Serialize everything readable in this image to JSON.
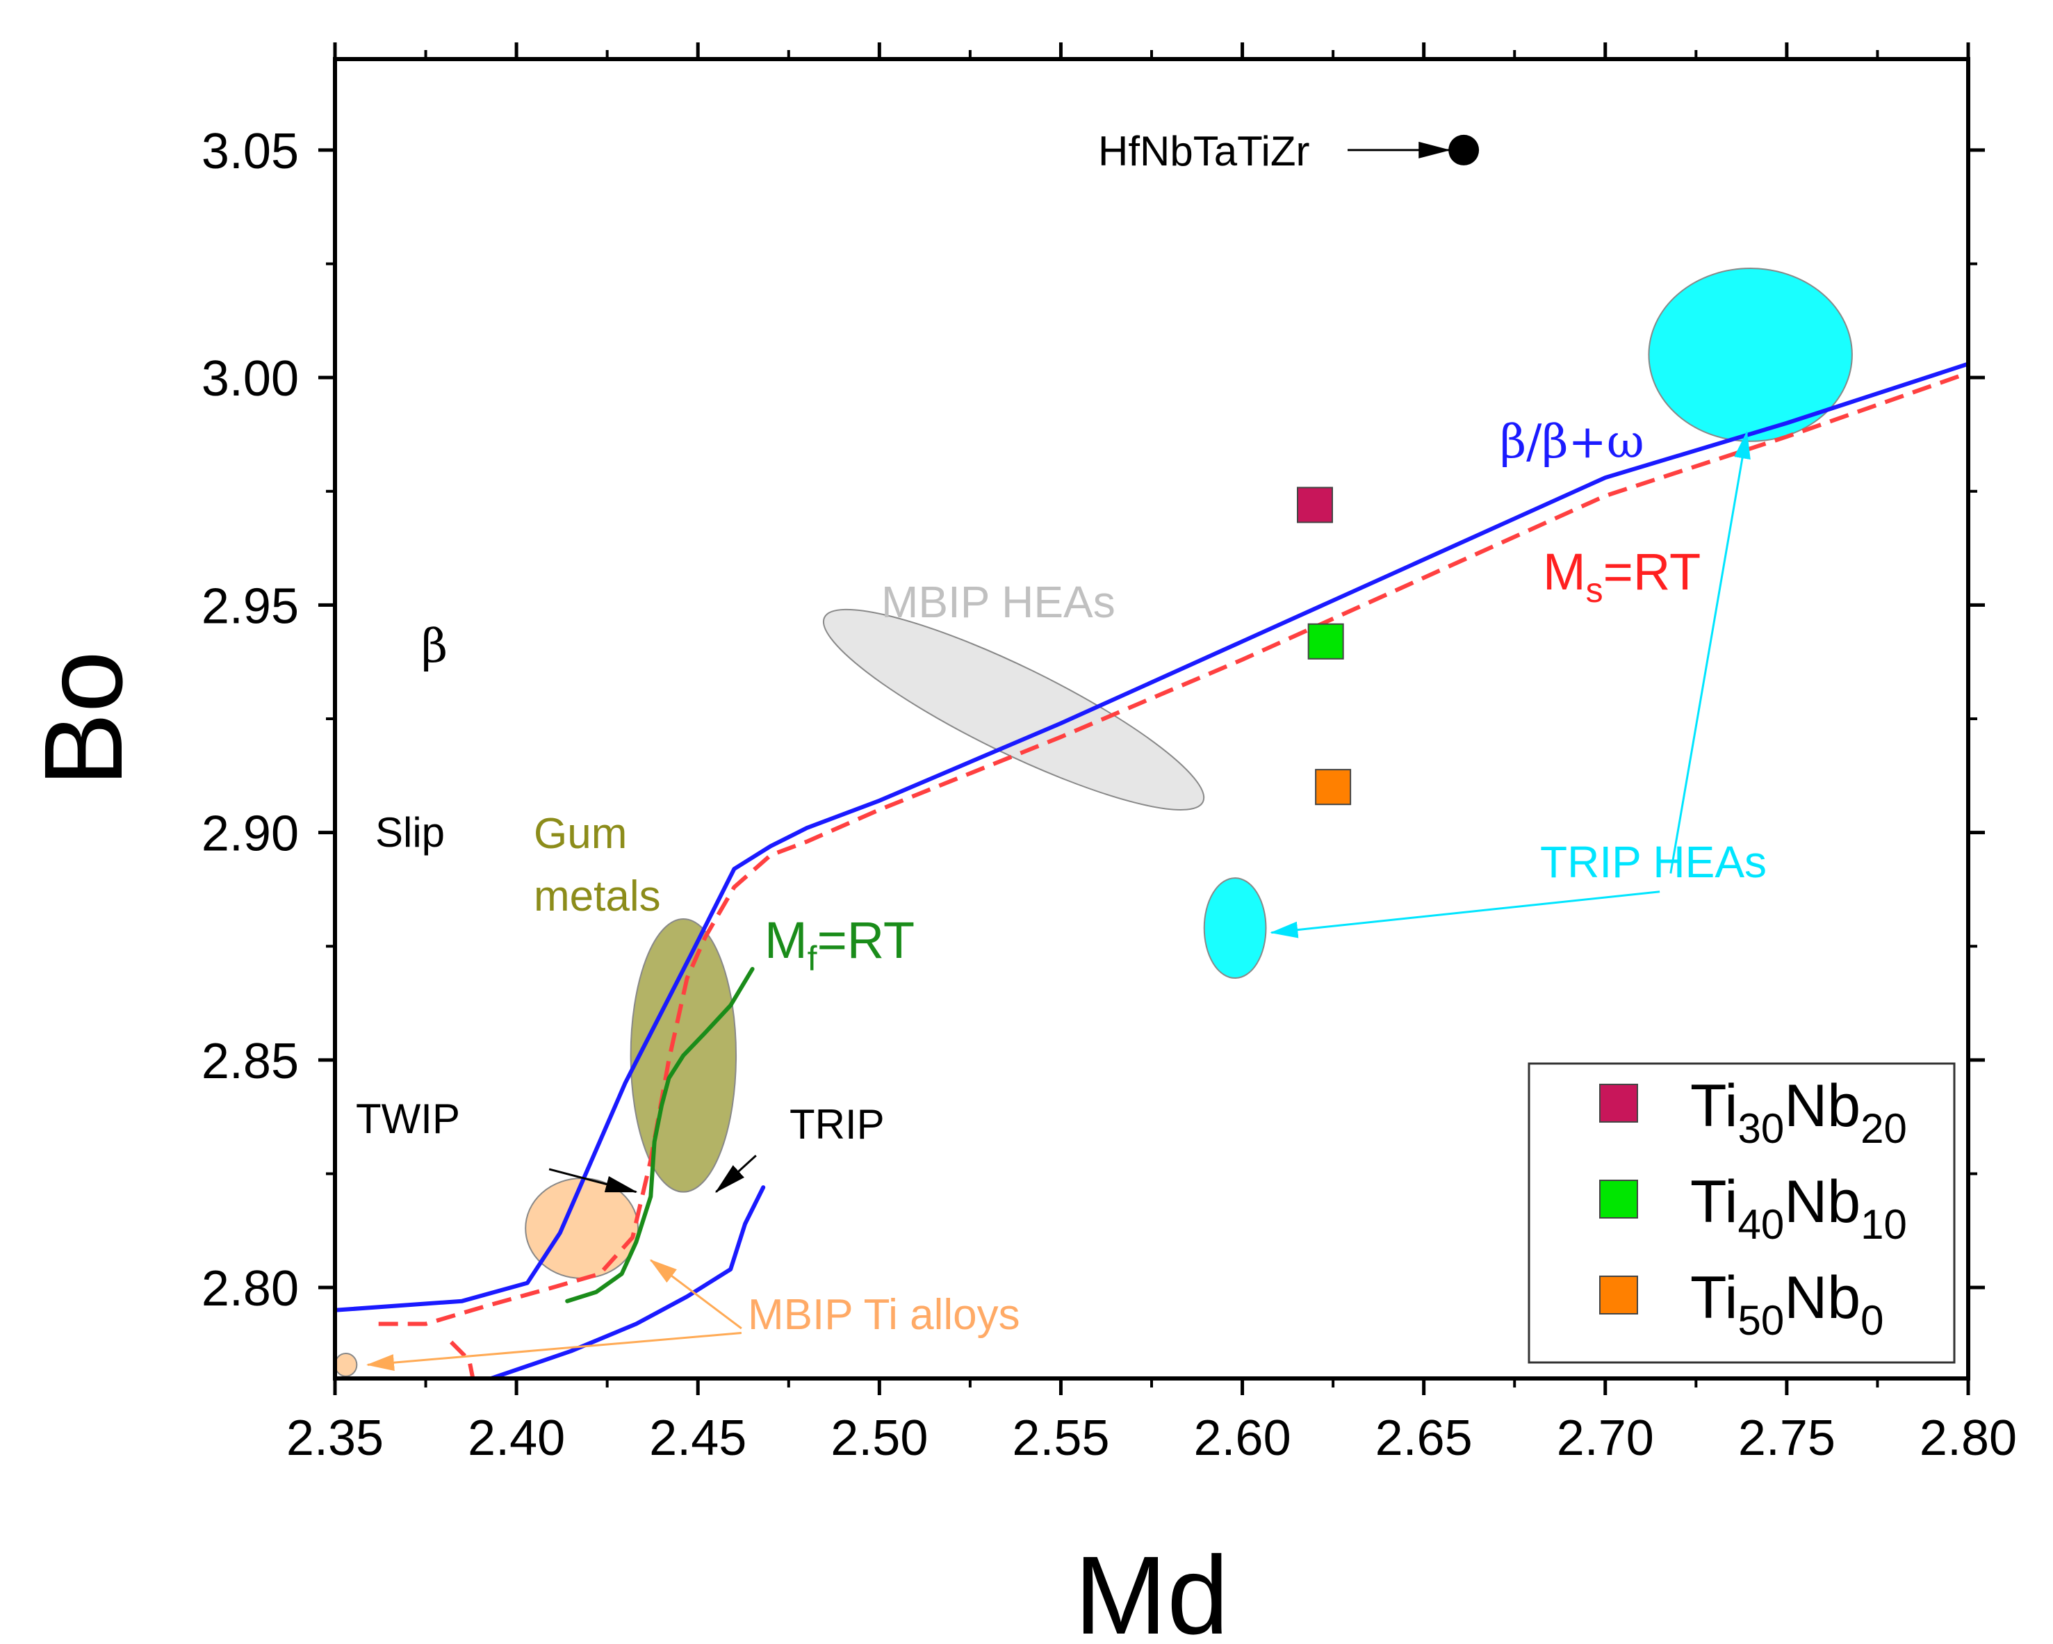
{
  "chart_data": {
    "type": "scatter",
    "title": "",
    "xlabel": "Md",
    "ylabel": "Bo",
    "xlim": [
      2.35,
      2.8
    ],
    "ylim": [
      2.78,
      3.07
    ],
    "x_ticks": [
      2.35,
      2.4,
      2.45,
      2.5,
      2.55,
      2.6,
      2.65,
      2.7,
      2.75,
      2.8
    ],
    "x_tick_labels": [
      "2.35",
      "2.40",
      "2.45",
      "2.50",
      "2.55",
      "2.60",
      "2.65",
      "2.70",
      "2.75",
      "2.80"
    ],
    "y_ticks": [
      2.8,
      2.85,
      2.9,
      2.95,
      3.0,
      3.05
    ],
    "y_tick_labels": [
      "2.80",
      "2.85",
      "2.90",
      "2.95",
      "3.00",
      "3.05"
    ],
    "colors": {
      "beta_line": "#1a1aff",
      "ms_line": "#ff4040",
      "mf_line": "#1a8c1a",
      "trip_boundary": "#1a1aff",
      "trip_heas": "#00ffff",
      "mbip_heas": "#dcdcdc",
      "gum_metals": "#999933",
      "mbip_ti": "#ffcc99"
    },
    "lines": [
      {
        "name": "β/β+ω",
        "style": "solid",
        "color": "#1a1aff",
        "x": [
          2.35,
          2.385,
          2.403,
          2.412,
          2.43,
          2.448,
          2.46,
          2.47,
          2.48,
          2.5,
          2.55,
          2.6,
          2.65,
          2.7,
          2.75,
          2.8
        ],
        "y": [
          2.795,
          2.797,
          2.801,
          2.812,
          2.845,
          2.873,
          2.892,
          2.897,
          2.901,
          2.907,
          2.924,
          2.942,
          2.96,
          2.978,
          2.99,
          3.003
        ]
      },
      {
        "name": "Ms=RT",
        "style": "dashed",
        "color": "#ff4040",
        "x": [
          2.362,
          2.375,
          2.392,
          2.41,
          2.423,
          2.432,
          2.437,
          2.442,
          2.447,
          2.452,
          2.46,
          2.47,
          2.48,
          2.5,
          2.55,
          2.6,
          2.65,
          2.7,
          2.75,
          2.8
        ],
        "y": [
          2.792,
          2.792,
          2.796,
          2.8,
          2.803,
          2.811,
          2.828,
          2.85,
          2.868,
          2.877,
          2.888,
          2.895,
          2.898,
          2.905,
          2.921,
          2.938,
          2.956,
          2.974,
          2.987,
          3.001
        ]
      },
      {
        "name": "Ms=RT (low branch)",
        "style": "dashed",
        "color": "#ff4040",
        "x": [
          2.382,
          2.387,
          2.388
        ],
        "y": [
          2.788,
          2.784,
          2.78
        ]
      },
      {
        "name": "Mf=RT",
        "style": "solid",
        "color": "#1a8c1a",
        "x": [
          2.414,
          2.422,
          2.429,
          2.433,
          2.437,
          2.438,
          2.44,
          2.442,
          2.446,
          2.452,
          2.459,
          2.465
        ],
        "y": [
          2.797,
          2.799,
          2.803,
          2.81,
          2.82,
          2.832,
          2.84,
          2.846,
          2.851,
          2.856,
          2.862,
          2.87
        ]
      },
      {
        "name": "TRIP boundary",
        "style": "solid",
        "color": "#1a1aff",
        "x": [
          2.393,
          2.415,
          2.433,
          2.447,
          2.459,
          2.463,
          2.468
        ],
        "y": [
          2.78,
          2.786,
          2.792,
          2.798,
          2.804,
          2.814,
          2.822
        ]
      }
    ],
    "series": [
      {
        "name": "Ti30Nb20",
        "label_main": "Ti",
        "label_sub1": "30",
        "label_mid": "Nb",
        "label_sub2": "20",
        "marker": "square",
        "color": "#c8165a",
        "x": [
          2.62
        ],
        "y": [
          2.972
        ]
      },
      {
        "name": "Ti40Nb10",
        "label_main": "Ti",
        "label_sub1": "40",
        "label_mid": "Nb",
        "label_sub2": "10",
        "marker": "square",
        "color": "#00e600",
        "x": [
          2.623
        ],
        "y": [
          2.942
        ]
      },
      {
        "name": "Ti50Nb0",
        "label_main": "Ti",
        "label_sub1": "50",
        "label_mid": "Nb",
        "label_sub2": "0",
        "marker": "square",
        "color": "#ff8000",
        "x": [
          2.625
        ],
        "y": [
          2.91
        ]
      }
    ],
    "extra_points": [
      {
        "name": "HfNbTaTiZr",
        "marker": "circle",
        "color": "#000000",
        "x": 2.661,
        "y": 3.05
      }
    ],
    "regions": [
      {
        "name": "TRIP HEAs (large)",
        "color": "#00ffff",
        "cx": 2.74,
        "cy": 3.005,
        "rx": 0.028,
        "ry": 0.019,
        "angle": 0
      },
      {
        "name": "TRIP HEAs (small)",
        "color": "#00ffff",
        "cx": 2.598,
        "cy": 2.879,
        "rx": 0.0085,
        "ry": 0.011,
        "angle": 0
      },
      {
        "name": "MBIP HEAs",
        "color": "#dcdcdc",
        "cx": 2.537,
        "cy": 2.927,
        "rx": 0.058,
        "ry": 0.0095,
        "angle": 26
      },
      {
        "name": "Gum metals",
        "color": "#999933",
        "cx": 2.446,
        "cy": 2.851,
        "rx": 0.0145,
        "ry": 0.03,
        "angle": 0
      },
      {
        "name": "MBIP Ti alloys",
        "color": "#ffcc99",
        "cx": 2.418,
        "cy": 2.813,
        "rx": 0.0155,
        "ry": 0.011,
        "angle": 0
      },
      {
        "name": "MBIP Ti alloys (small)",
        "color": "#ffcc99",
        "cx": 2.353,
        "cy": 2.783,
        "rx": 0.003,
        "ry": 0.0025,
        "angle": 0
      }
    ],
    "annotations": {
      "hf": "HfNbTaTiZr",
      "beta_line": "β/β+ω",
      "ms_main": "M",
      "ms_sub": "s",
      "ms_rest": "=RT",
      "mf_main": "M",
      "mf_sub": "f",
      "mf_rest": "=RT",
      "mbip_heas": "MBIP HEAs",
      "beta": "β",
      "slip": "Slip",
      "gum1": "Gum",
      "gum2": "metals",
      "trip_heas": "TRIP HEAs",
      "twip": "TWIP",
      "trip": "TRIP",
      "mbip_ti": "MBIP Ti alloys"
    },
    "legend": {
      "placement": "bottom-right"
    }
  }
}
